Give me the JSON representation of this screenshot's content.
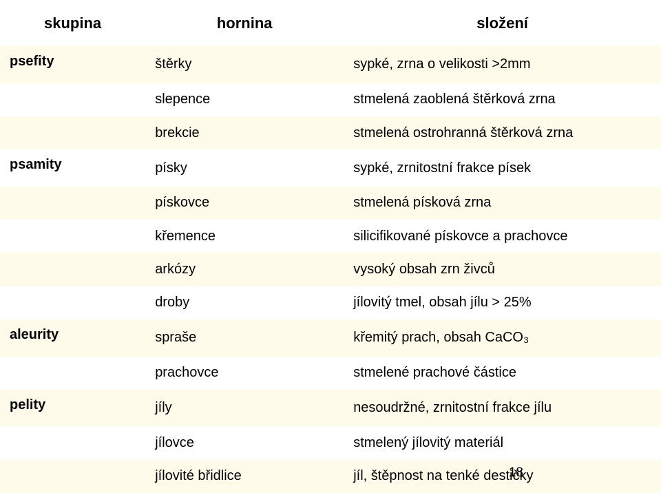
{
  "colors": {
    "alt_row_bg": "#fffbeb",
    "plain_row_bg": "#ffffff",
    "text": "#000000"
  },
  "typography": {
    "font_family": "Arial",
    "header_fontsize_pt": 16,
    "body_fontsize_pt": 15
  },
  "page_number": "18",
  "header": {
    "skupina": "skupina",
    "hornina": "hornina",
    "slozeni": "složení"
  },
  "groups": [
    {
      "name": "psefity",
      "rows": [
        {
          "hornina": "štěrky",
          "slozeni": "sypké, zrna o velikosti >2mm"
        },
        {
          "hornina": "slepence",
          "slozeni": "stmelená zaoblená štěrková zrna"
        },
        {
          "hornina": "brekcie",
          "slozeni": "stmelená ostrohranná štěrková zrna"
        }
      ]
    },
    {
      "name": "psamity",
      "rows": [
        {
          "hornina": "písky",
          "slozeni": "sypké, zrnitostní frakce písek"
        },
        {
          "hornina": "pískovce",
          "slozeni": "stmelená písková zrna"
        },
        {
          "hornina": "křemence",
          "slozeni": "silicifikované pískovce a prachovce"
        },
        {
          "hornina": "arkózy",
          "slozeni": "vysoký obsah zrn živců"
        },
        {
          "hornina": "droby",
          "slozeni": "jílovitý tmel, obsah jílu > 25%"
        }
      ]
    },
    {
      "name": "aleurity",
      "rows": [
        {
          "hornina": "spraše",
          "slozeni": "křemitý prach, obsah CaCO₃"
        },
        {
          "hornina": "prachovce",
          "slozeni": "stmelené prachové částice"
        }
      ]
    },
    {
      "name": "pelity",
      "rows": [
        {
          "hornina": "jíly",
          "slozeni": "nesoudržné, zrnitostní frakce jílu"
        },
        {
          "hornina": "jílovce",
          "slozeni": "stmelený jílovitý materiál"
        },
        {
          "hornina": "jílovité břidlice",
          "slozeni": "jíl, štěpnost na tenké destičky"
        }
      ]
    }
  ]
}
